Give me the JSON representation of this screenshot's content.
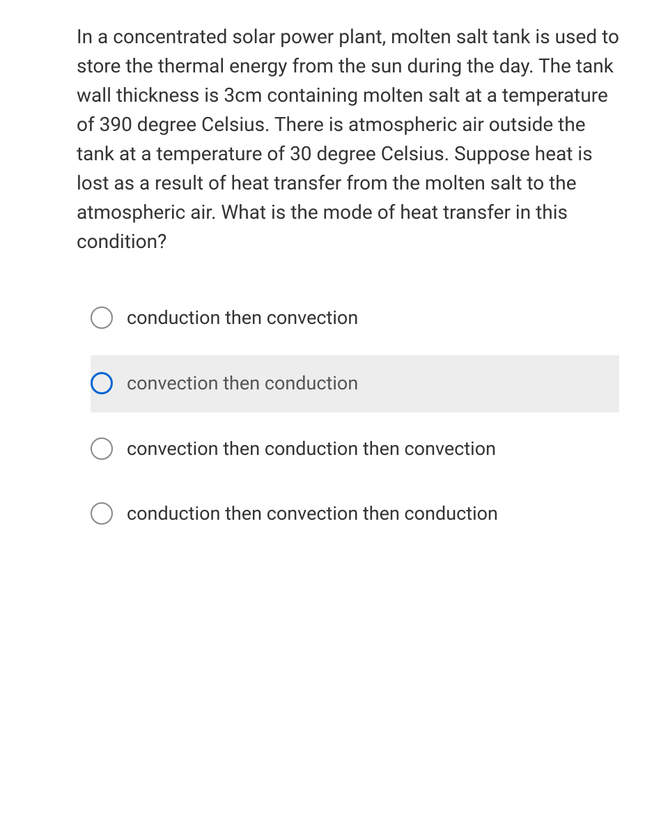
{
  "question": {
    "text": "In a concentrated solar power plant, molten salt tank is used to store the thermal energy from the sun during the day. The tank wall thickness is 3cm containing molten salt at a temperature of 390 degree Celsius. There is atmospheric air outside the tank at a temperature of 30 degree Celsius. Suppose heat is lost as a result of heat transfer from the molten salt to the atmospheric air. What is the mode of heat transfer in this condition?"
  },
  "options": [
    {
      "label": "conduction then convection",
      "highlighted": false
    },
    {
      "label": "convection then conduction",
      "highlighted": true
    },
    {
      "label": "convection then conduction then convection",
      "highlighted": false
    },
    {
      "label": "conduction then convection then conduction",
      "highlighted": false
    }
  ],
  "colors": {
    "background": "#ffffff",
    "text": "#333333",
    "radio_border": "#888888",
    "radio_selected": "#0065d3",
    "highlight_bg": "#ededed"
  }
}
